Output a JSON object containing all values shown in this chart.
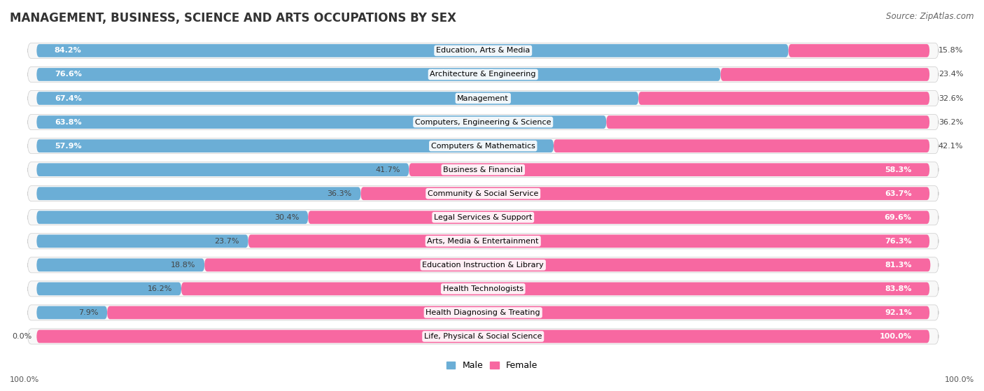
{
  "title": "MANAGEMENT, BUSINESS, SCIENCE AND ARTS OCCUPATIONS BY SEX",
  "source": "Source: ZipAtlas.com",
  "categories": [
    "Education, Arts & Media",
    "Architecture & Engineering",
    "Management",
    "Computers, Engineering & Science",
    "Computers & Mathematics",
    "Business & Financial",
    "Community & Social Service",
    "Legal Services & Support",
    "Arts, Media & Entertainment",
    "Education Instruction & Library",
    "Health Technologists",
    "Health Diagnosing & Treating",
    "Life, Physical & Social Science"
  ],
  "male_pct": [
    84.2,
    76.6,
    67.4,
    63.8,
    57.9,
    41.7,
    36.3,
    30.4,
    23.7,
    18.8,
    16.2,
    7.9,
    0.0
  ],
  "female_pct": [
    15.8,
    23.4,
    32.6,
    36.2,
    42.1,
    58.3,
    63.7,
    69.6,
    76.3,
    81.3,
    83.8,
    92.1,
    100.0
  ],
  "male_color": "#6baed6",
  "female_color": "#f768a1",
  "bg_color": "#f0f0f0",
  "bar_bg_color": "#dcdcdc",
  "row_bg_color": "#f8f8f8",
  "title_fontsize": 12,
  "label_fontsize": 8,
  "pct_fontsize": 8,
  "legend_fontsize": 9,
  "source_fontsize": 8.5
}
